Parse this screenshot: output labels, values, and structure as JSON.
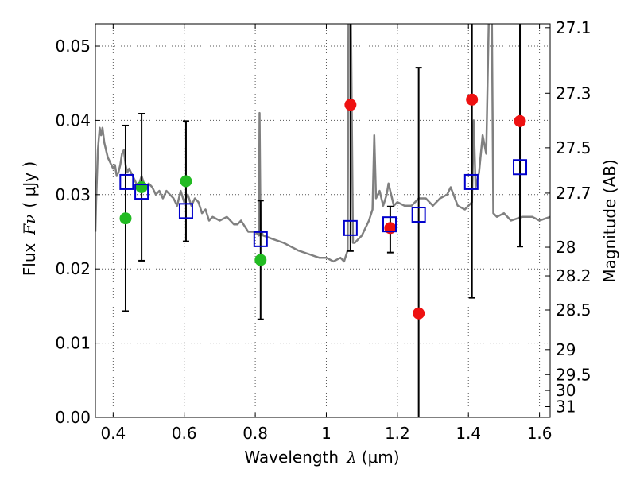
{
  "chart_data": {
    "type": "scatter",
    "title": "",
    "xlabel": "Wavelength",
    "xlabel_symbol": "λ",
    "xlabel_unit": "(μm)",
    "ylabel": "Flux",
    "ylabel_symbol": "Fν",
    "ylabel_unit": "( μJy )",
    "y2label": "Magnitude (AB)",
    "xlim": [
      0.35,
      1.63
    ],
    "ylim": [
      0.0,
      0.053
    ],
    "grid": true,
    "x_ticks": [
      {
        "value": 0.4,
        "label": "0.4"
      },
      {
        "value": 0.6,
        "label": "0.6"
      },
      {
        "value": 0.8,
        "label": "0.8"
      },
      {
        "value": 1.0,
        "label": "1"
      },
      {
        "value": 1.2,
        "label": "1.2"
      },
      {
        "value": 1.4,
        "label": "1.4"
      },
      {
        "value": 1.6,
        "label": "1.6"
      }
    ],
    "y_ticks": [
      {
        "value": 0.0,
        "label": "0.00"
      },
      {
        "value": 0.01,
        "label": "0.01"
      },
      {
        "value": 0.02,
        "label": "0.02"
      },
      {
        "value": 0.03,
        "label": "0.03"
      },
      {
        "value": 0.04,
        "label": "0.04"
      },
      {
        "value": 0.05,
        "label": "0.05"
      }
    ],
    "y2_ticks": [
      {
        "mag": 27.1,
        "label": "27.1"
      },
      {
        "mag": 27.3,
        "label": "27.3"
      },
      {
        "mag": 27.5,
        "label": "27.5"
      },
      {
        "mag": 27.7,
        "label": "27.7"
      },
      {
        "mag": 28.0,
        "label": "28"
      },
      {
        "mag": 28.2,
        "label": "28.2"
      },
      {
        "mag": 28.5,
        "label": "28.5"
      },
      {
        "mag": 29.0,
        "label": "29"
      },
      {
        "mag": 29.5,
        "label": "29.5"
      },
      {
        "mag": 30.0,
        "label": "30"
      },
      {
        "mag": 31.0,
        "label": "31"
      }
    ],
    "colors": {
      "model": "#808080",
      "ground": "#22bb22",
      "hst": "#ee1111",
      "synthetic": "#0000cc",
      "errorbar": "#000000",
      "grid": "#555555"
    },
    "series": [
      {
        "name": "model_spectrum",
        "style": "line",
        "x": [
          0.35,
          0.352,
          0.357,
          0.362,
          0.366,
          0.37,
          0.375,
          0.38,
          0.385,
          0.39,
          0.395,
          0.4,
          0.405,
          0.41,
          0.415,
          0.42,
          0.425,
          0.43,
          0.435,
          0.44,
          0.445,
          0.45,
          0.46,
          0.47,
          0.48,
          0.49,
          0.5,
          0.51,
          0.52,
          0.53,
          0.54,
          0.55,
          0.56,
          0.57,
          0.58,
          0.59,
          0.6,
          0.61,
          0.62,
          0.63,
          0.64,
          0.65,
          0.66,
          0.67,
          0.68,
          0.7,
          0.72,
          0.74,
          0.75,
          0.76,
          0.78,
          0.8,
          0.81,
          0.812,
          0.815,
          0.818,
          0.822,
          0.85,
          0.88,
          0.9,
          0.92,
          0.95,
          0.98,
          1.0,
          1.02,
          1.04,
          1.05,
          1.06,
          1.063,
          1.068,
          1.075,
          1.08,
          1.1,
          1.12,
          1.13,
          1.135,
          1.14,
          1.145,
          1.15,
          1.16,
          1.17,
          1.175,
          1.18,
          1.19,
          1.2,
          1.22,
          1.24,
          1.26,
          1.28,
          1.3,
          1.32,
          1.34,
          1.35,
          1.37,
          1.39,
          1.4,
          1.41,
          1.415,
          1.42,
          1.43,
          1.44,
          1.45,
          1.46,
          1.465,
          1.47,
          1.48,
          1.5,
          1.52,
          1.55,
          1.58,
          1.6,
          1.63
        ],
        "y": [
          0.025,
          0.029,
          0.036,
          0.039,
          0.038,
          0.039,
          0.037,
          0.036,
          0.035,
          0.0345,
          0.034,
          0.0335,
          0.034,
          0.0325,
          0.033,
          0.034,
          0.0355,
          0.036,
          0.034,
          0.033,
          0.0335,
          0.033,
          0.032,
          0.031,
          0.0325,
          0.031,
          0.0315,
          0.031,
          0.03,
          0.0305,
          0.0295,
          0.0305,
          0.03,
          0.0295,
          0.0285,
          0.0305,
          0.029,
          0.03,
          0.0285,
          0.0295,
          0.029,
          0.0275,
          0.028,
          0.0265,
          0.027,
          0.0265,
          0.027,
          0.026,
          0.026,
          0.0265,
          0.025,
          0.025,
          0.0245,
          0.041,
          0.0245,
          0.025,
          0.0245,
          0.024,
          0.0235,
          0.023,
          0.0225,
          0.022,
          0.0215,
          0.0215,
          0.021,
          0.0215,
          0.021,
          0.0225,
          0.06,
          0.06,
          0.0235,
          0.0235,
          0.0245,
          0.0265,
          0.028,
          0.038,
          0.0295,
          0.03,
          0.0305,
          0.0285,
          0.03,
          0.0315,
          0.0305,
          0.0285,
          0.029,
          0.0285,
          0.0285,
          0.0295,
          0.0295,
          0.0285,
          0.0295,
          0.03,
          0.031,
          0.0285,
          0.028,
          0.0285,
          0.029,
          0.04,
          0.031,
          0.033,
          0.038,
          0.0355,
          0.06,
          0.06,
          0.0275,
          0.027,
          0.0275,
          0.0265,
          0.027,
          0.027,
          0.0265,
          0.027
        ]
      },
      {
        "name": "ground_photometry",
        "style": "filled_circle",
        "x": [
          0.435,
          0.48,
          0.605,
          0.815
        ],
        "y": [
          0.0268,
          0.031,
          0.0318,
          0.0212
        ]
      },
      {
        "name": "hst_photometry",
        "style": "filled_circle",
        "x": [
          1.068,
          1.18,
          1.26,
          1.41,
          1.545
        ],
        "y": [
          0.0421,
          0.0255,
          0.014,
          0.0428,
          0.0399
        ]
      },
      {
        "name": "synthetic_model_photometry",
        "style": "open_square",
        "x": [
          0.438,
          0.48,
          0.605,
          0.815,
          1.068,
          1.178,
          1.26,
          1.408,
          1.545
        ],
        "y": [
          0.0317,
          0.0304,
          0.0278,
          0.024,
          0.0255,
          0.026,
          0.0273,
          0.0317,
          0.0337
        ]
      }
    ],
    "error_bars": [
      {
        "x": 0.435,
        "low": 0.0143,
        "high": 0.0393
      },
      {
        "x": 0.48,
        "low": 0.0211,
        "high": 0.0409
      },
      {
        "x": 0.605,
        "low": 0.0237,
        "high": 0.0399
      },
      {
        "x": 0.815,
        "low": 0.0132,
        "high": 0.0292
      },
      {
        "x": 1.068,
        "low": 0.0224,
        "high": 0.06
      },
      {
        "x": 1.18,
        "low": 0.0222,
        "high": 0.0284
      },
      {
        "x": 1.26,
        "low": 0.0,
        "high": 0.0471
      },
      {
        "x": 1.41,
        "low": 0.0161,
        "high": 0.06
      },
      {
        "x": 1.545,
        "low": 0.023,
        "high": 0.06
      }
    ]
  }
}
